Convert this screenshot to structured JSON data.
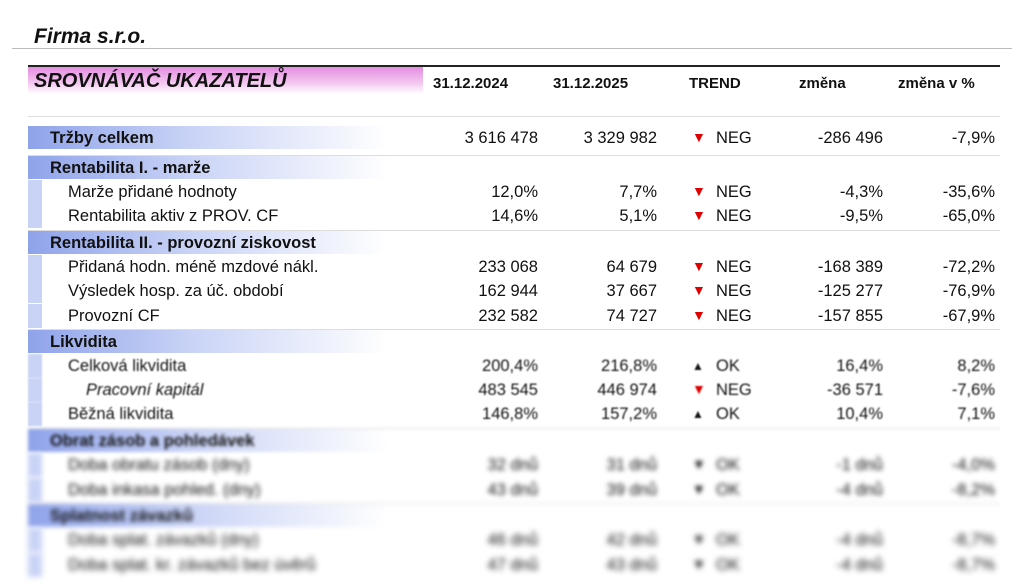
{
  "company": "Firma s.r.o.",
  "header": {
    "title": "SROVNÁVAČ UKAZATELŮ",
    "col1": "31.12.2024",
    "col2": "31.12.2025",
    "trend": "TREND",
    "change": "změna",
    "change_pct": "změna v %"
  },
  "colors": {
    "header_band": "#e48de0",
    "section_band": "#8fa3ea",
    "negative": "#e00000"
  },
  "rows": [
    {
      "type": "sec",
      "label": "Tržby celkem",
      "v1": "3 616 478",
      "v2": "3 329 982",
      "trend": "neg",
      "trend_label": "NEG",
      "change": "-286 496",
      "pct": "-7,9%"
    },
    {
      "type": "sec",
      "label": "Rentabilita I. - marže"
    },
    {
      "type": "item",
      "label": "Marže přidané hodnoty",
      "v1": "12,0%",
      "v2": "7,7%",
      "trend": "neg",
      "trend_label": "NEG",
      "change": "-4,3%",
      "pct": "-35,6%"
    },
    {
      "type": "item",
      "label": "Rentabilita aktiv z PROV. CF",
      "v1": "14,6%",
      "v2": "5,1%",
      "trend": "neg",
      "trend_label": "NEG",
      "change": "-9,5%",
      "pct": "-65,0%"
    },
    {
      "type": "sec",
      "label": "Rentabilita II. - provozní ziskovost"
    },
    {
      "type": "item",
      "label": "Přidaná hodn. méně mzdové nákl.",
      "v1": "233 068",
      "v2": "64 679",
      "trend": "neg",
      "trend_label": "NEG",
      "change": "-168 389",
      "pct": "-72,2%"
    },
    {
      "type": "item",
      "label": "Výsledek hosp. za úč. období",
      "v1": "162 944",
      "v2": "37 667",
      "trend": "neg",
      "trend_label": "NEG",
      "change": "-125 277",
      "pct": "-76,9%"
    },
    {
      "type": "item",
      "label": "Provozní CF",
      "v1": "232 582",
      "v2": "74 727",
      "trend": "neg",
      "trend_label": "NEG",
      "change": "-157 855",
      "pct": "-67,9%"
    },
    {
      "type": "sec",
      "label": "Likvidita"
    },
    {
      "type": "item",
      "label": "Celková likvidita",
      "v1": "200,4%",
      "v2": "216,8%",
      "trend": "ok",
      "trend_label": "OK",
      "change": "16,4%",
      "pct": "8,2%"
    },
    {
      "type": "ital",
      "label": "Pracovní kapitál",
      "v1": "483 545",
      "v2": "446 974",
      "trend": "neg",
      "trend_label": "NEG",
      "change": "-36 571",
      "pct": "-7,6%"
    },
    {
      "type": "item",
      "label": "Běžná likvidita",
      "v1": "146,8%",
      "v2": "157,2%",
      "trend": "ok",
      "trend_label": "OK",
      "change": "10,4%",
      "pct": "7,1%"
    },
    {
      "type": "sec",
      "label": "Obrat zásob a pohledávek"
    },
    {
      "type": "item",
      "label": "Doba obratu zásob (dny)",
      "v1": "32 dnů",
      "v2": "31 dnů",
      "trend": "down",
      "trend_label": "OK",
      "change": "-1 dnů",
      "pct": "-4,0%"
    },
    {
      "type": "item",
      "label": "Doba inkasa pohled. (dny)",
      "v1": "43 dnů",
      "v2": "39 dnů",
      "trend": "down",
      "trend_label": "OK",
      "change": "-4 dnů",
      "pct": "-8,2%"
    },
    {
      "type": "sec",
      "label": "Splatnost závazků"
    },
    {
      "type": "item",
      "label": "Doba splat. závazků (dny)",
      "v1": "46 dnů",
      "v2": "42 dnů",
      "trend": "down",
      "trend_label": "OK",
      "change": "-4 dnů",
      "pct": "-8,7%"
    },
    {
      "type": "item",
      "label": "Doba splat. kr. závazků bez úvěrů",
      "v1": "47 dnů",
      "v2": "43 dnů",
      "trend": "down",
      "trend_label": "OK",
      "change": "-4 dnů",
      "pct": "-8,7%"
    }
  ]
}
